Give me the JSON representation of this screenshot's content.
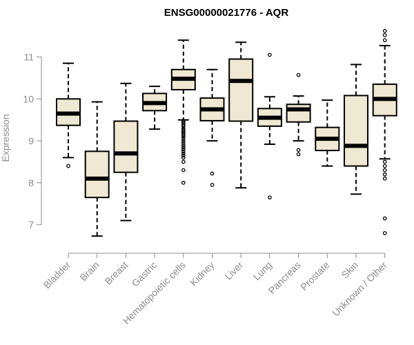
{
  "chart_data": {
    "type": "boxplot",
    "title": "ENSG00000021776 - AQR",
    "xlabel": "",
    "ylabel": "Expression",
    "ylim": [
      6.6,
      11.7
    ],
    "yticks": [
      7,
      8,
      9,
      10,
      11
    ],
    "box_fill": "#efe8d2",
    "categories": [
      "Bladder",
      "Brain",
      "Breast",
      "Gastric",
      "Hematopoietic cells",
      "Kidney",
      "Liver",
      "Lung",
      "Pancreas",
      "Prostate",
      "Skin",
      "Unknown / Other"
    ],
    "boxes": [
      {
        "label": "Bladder",
        "whisker_low": 8.6,
        "q1": 9.37,
        "median": 9.65,
        "q3": 10.0,
        "whisker_high": 10.85,
        "outliers": [
          8.4
        ]
      },
      {
        "label": "Brain",
        "whisker_low": 6.73,
        "q1": 7.65,
        "median": 8.1,
        "q3": 8.75,
        "whisker_high": 9.93,
        "outliers": []
      },
      {
        "label": "Breast",
        "whisker_low": 7.1,
        "q1": 8.25,
        "median": 8.7,
        "q3": 9.47,
        "whisker_high": 10.37,
        "outliers": []
      },
      {
        "label": "Gastric",
        "whisker_low": 9.28,
        "q1": 9.72,
        "median": 9.9,
        "q3": 10.13,
        "whisker_high": 10.3,
        "outliers": []
      },
      {
        "label": "Hematopoietic cells",
        "whisker_low": 9.5,
        "q1": 10.22,
        "median": 10.48,
        "q3": 10.7,
        "whisker_high": 11.4,
        "outliers": [
          9.48,
          9.45,
          9.42,
          9.38,
          9.35,
          9.3,
          9.26,
          9.22,
          9.18,
          9.14,
          9.1,
          9.05,
          9.0,
          8.95,
          8.9,
          8.85,
          8.8,
          8.75,
          8.7,
          8.65,
          8.6,
          8.5,
          8.3,
          8.0
        ]
      },
      {
        "label": "Kidney",
        "whisker_low": 9.0,
        "q1": 9.48,
        "median": 9.75,
        "q3": 10.02,
        "whisker_high": 10.7,
        "outliers": [
          8.22,
          7.95
        ]
      },
      {
        "label": "Liver",
        "whisker_low": 7.88,
        "q1": 9.47,
        "median": 10.43,
        "q3": 10.95,
        "whisker_high": 11.35,
        "outliers": []
      },
      {
        "label": "Lung",
        "whisker_low": 8.92,
        "q1": 9.35,
        "median": 9.55,
        "q3": 9.77,
        "whisker_high": 10.05,
        "outliers": [
          11.05,
          7.65
        ]
      },
      {
        "label": "Pancreas",
        "whisker_low": 9.0,
        "q1": 9.45,
        "median": 9.75,
        "q3": 9.87,
        "whisker_high": 10.07,
        "outliers": [
          10.57,
          8.78,
          8.68
        ]
      },
      {
        "label": "Prostate",
        "whisker_low": 8.4,
        "q1": 8.77,
        "median": 9.05,
        "q3": 9.32,
        "whisker_high": 9.97,
        "outliers": []
      },
      {
        "label": "Skin",
        "whisker_low": 7.73,
        "q1": 8.4,
        "median": 8.88,
        "q3": 10.08,
        "whisker_high": 10.82,
        "outliers": []
      },
      {
        "label": "Unknown / Other",
        "whisker_low": 8.57,
        "q1": 9.6,
        "median": 10.0,
        "q3": 10.35,
        "whisker_high": 11.27,
        "outliers": [
          11.62,
          11.52,
          11.4,
          8.5,
          8.4,
          8.3,
          8.2,
          8.1,
          7.15,
          6.8
        ]
      }
    ]
  }
}
